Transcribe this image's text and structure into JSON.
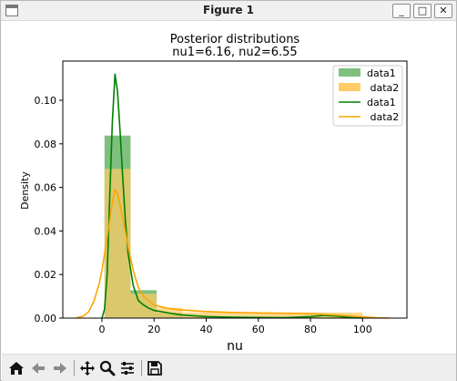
{
  "window": {
    "title": "Figure 1",
    "buttons": {
      "minimize": "_",
      "maximize": "□",
      "close": "✕"
    }
  },
  "toolbar": {
    "icons": [
      "home-icon",
      "back-arrow-icon",
      "forward-arrow-icon",
      "pan-move-icon",
      "zoom-magnifier-icon",
      "configure-subplots-icon",
      "save-floppy-icon"
    ]
  },
  "chart_data": {
    "type": "histogram-kde",
    "title_lines": [
      "Posterior distributions",
      "nu1=6.16,  nu2=6.55"
    ],
    "xlabel": "nu",
    "ylabel": "Density",
    "xlim": [
      -15,
      117
    ],
    "ylim": [
      0,
      0.118
    ],
    "x_ticks": [
      0,
      20,
      40,
      60,
      80,
      100
    ],
    "y_ticks": [
      0.0,
      0.02,
      0.04,
      0.06,
      0.08,
      0.1
    ],
    "y_tick_labels": [
      "0.00",
      "0.02",
      "0.04",
      "0.06",
      "0.08",
      "0.10"
    ],
    "grid": false,
    "legend_position": "top-right",
    "colors": {
      "data1": "#008000",
      "data2": "#ffa500",
      "hist1_fill": "#7fbf7f",
      "hist2_fill": "#ffcc66",
      "overlap": "#bfb443"
    },
    "histograms": [
      {
        "name": "data1",
        "legend_label": "data1",
        "color": "#7fbf7f",
        "bins": [
          {
            "x0": 1,
            "x1": 11,
            "density": 0.0838
          },
          {
            "x0": 11,
            "x1": 21,
            "density": 0.0128
          },
          {
            "x0": 21,
            "x1": 31,
            "density": 0.0025
          },
          {
            "x0": 31,
            "x1": 100,
            "density": 0.0005
          }
        ]
      },
      {
        "name": "data2",
        "legend_label": " data2",
        "color": "#ffcc66",
        "bins": [
          {
            "x0": 1,
            "x1": 11,
            "density": 0.0685
          },
          {
            "x0": 11,
            "x1": 21,
            "density": 0.0112
          },
          {
            "x0": 21,
            "x1": 31,
            "density": 0.0048
          },
          {
            "x0": 31,
            "x1": 100,
            "density": 0.0026
          }
        ]
      }
    ],
    "kde_lines": [
      {
        "name": "data1",
        "legend_label": "data1",
        "color": "#008000",
        "x": [
          0,
          1,
          2,
          3,
          4,
          5,
          6,
          7,
          8,
          9,
          10,
          12,
          14,
          16,
          18,
          20,
          25,
          30,
          40,
          50,
          60,
          70,
          80,
          85,
          90,
          95,
          100
        ],
        "y": [
          0.0,
          0.004,
          0.02,
          0.055,
          0.09,
          0.112,
          0.104,
          0.085,
          0.064,
          0.045,
          0.03,
          0.015,
          0.008,
          0.006,
          0.0045,
          0.0035,
          0.0025,
          0.0015,
          0.0007,
          0.0004,
          0.0003,
          0.0002,
          0.0007,
          0.0012,
          0.0009,
          0.0003,
          0.0
        ]
      },
      {
        "name": "data2",
        "legend_label": " data2",
        "color": "#ffa500",
        "x": [
          -10,
          -7,
          -5,
          -3,
          -1,
          0,
          2,
          4,
          5,
          6,
          8,
          10,
          12,
          14,
          16,
          20,
          25,
          30,
          40,
          50,
          60,
          70,
          80,
          90,
          100,
          105,
          110
        ],
        "y": [
          0.0,
          0.001,
          0.003,
          0.008,
          0.016,
          0.022,
          0.037,
          0.053,
          0.059,
          0.057,
          0.046,
          0.033,
          0.022,
          0.014,
          0.01,
          0.006,
          0.0045,
          0.0038,
          0.003,
          0.0026,
          0.0024,
          0.0022,
          0.002,
          0.0014,
          0.0006,
          0.0002,
          0.0
        ]
      }
    ]
  }
}
